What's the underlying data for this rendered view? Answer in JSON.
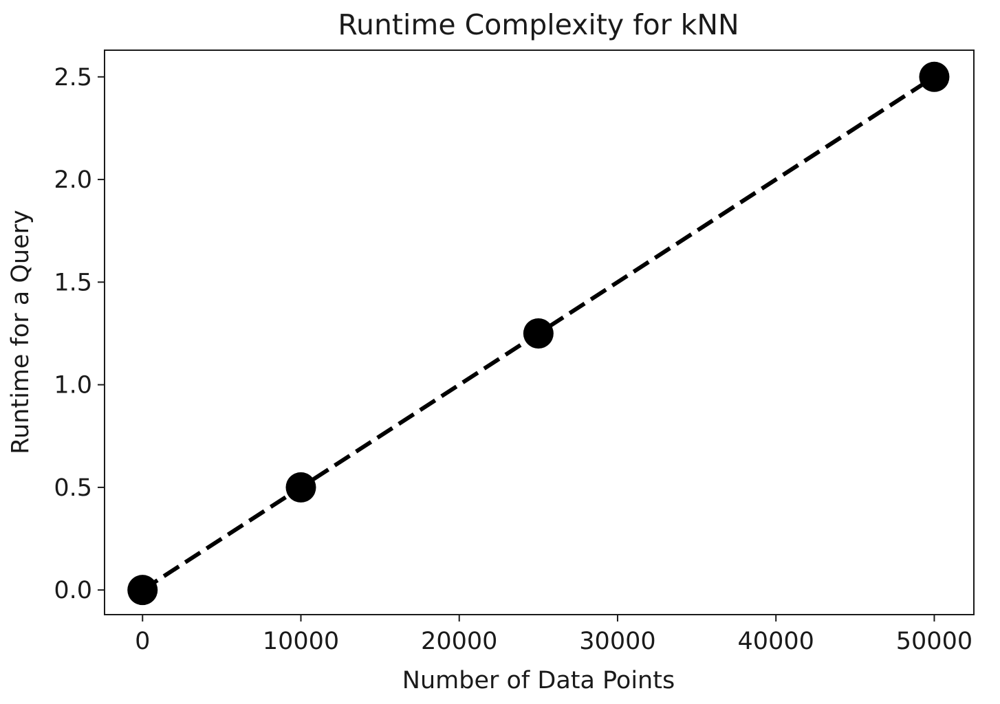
{
  "chart_data": {
    "type": "line",
    "title": "Runtime Complexity for kNN",
    "xlabel": "Number of Data Points",
    "ylabel": "Runtime for a Query",
    "xlim": [
      -2400,
      52500
    ],
    "ylim": [
      -0.12,
      2.63
    ],
    "xticks": [
      0,
      10000,
      20000,
      30000,
      40000,
      50000
    ],
    "xtick_labels": [
      "0",
      "10000",
      "20000",
      "30000",
      "40000",
      "50000"
    ],
    "yticks": [
      0.0,
      0.5,
      1.0,
      1.5,
      2.0,
      2.5
    ],
    "ytick_labels": [
      "0.0",
      "0.5",
      "1.0",
      "1.5",
      "2.0",
      "2.5"
    ],
    "grid": false,
    "series": [
      {
        "x": [
          0,
          10000,
          25000,
          50000
        ],
        "y": [
          0.0,
          0.5,
          1.25,
          2.5
        ],
        "color": "#000000",
        "line_style": "dashed",
        "marker": "circle"
      }
    ]
  }
}
